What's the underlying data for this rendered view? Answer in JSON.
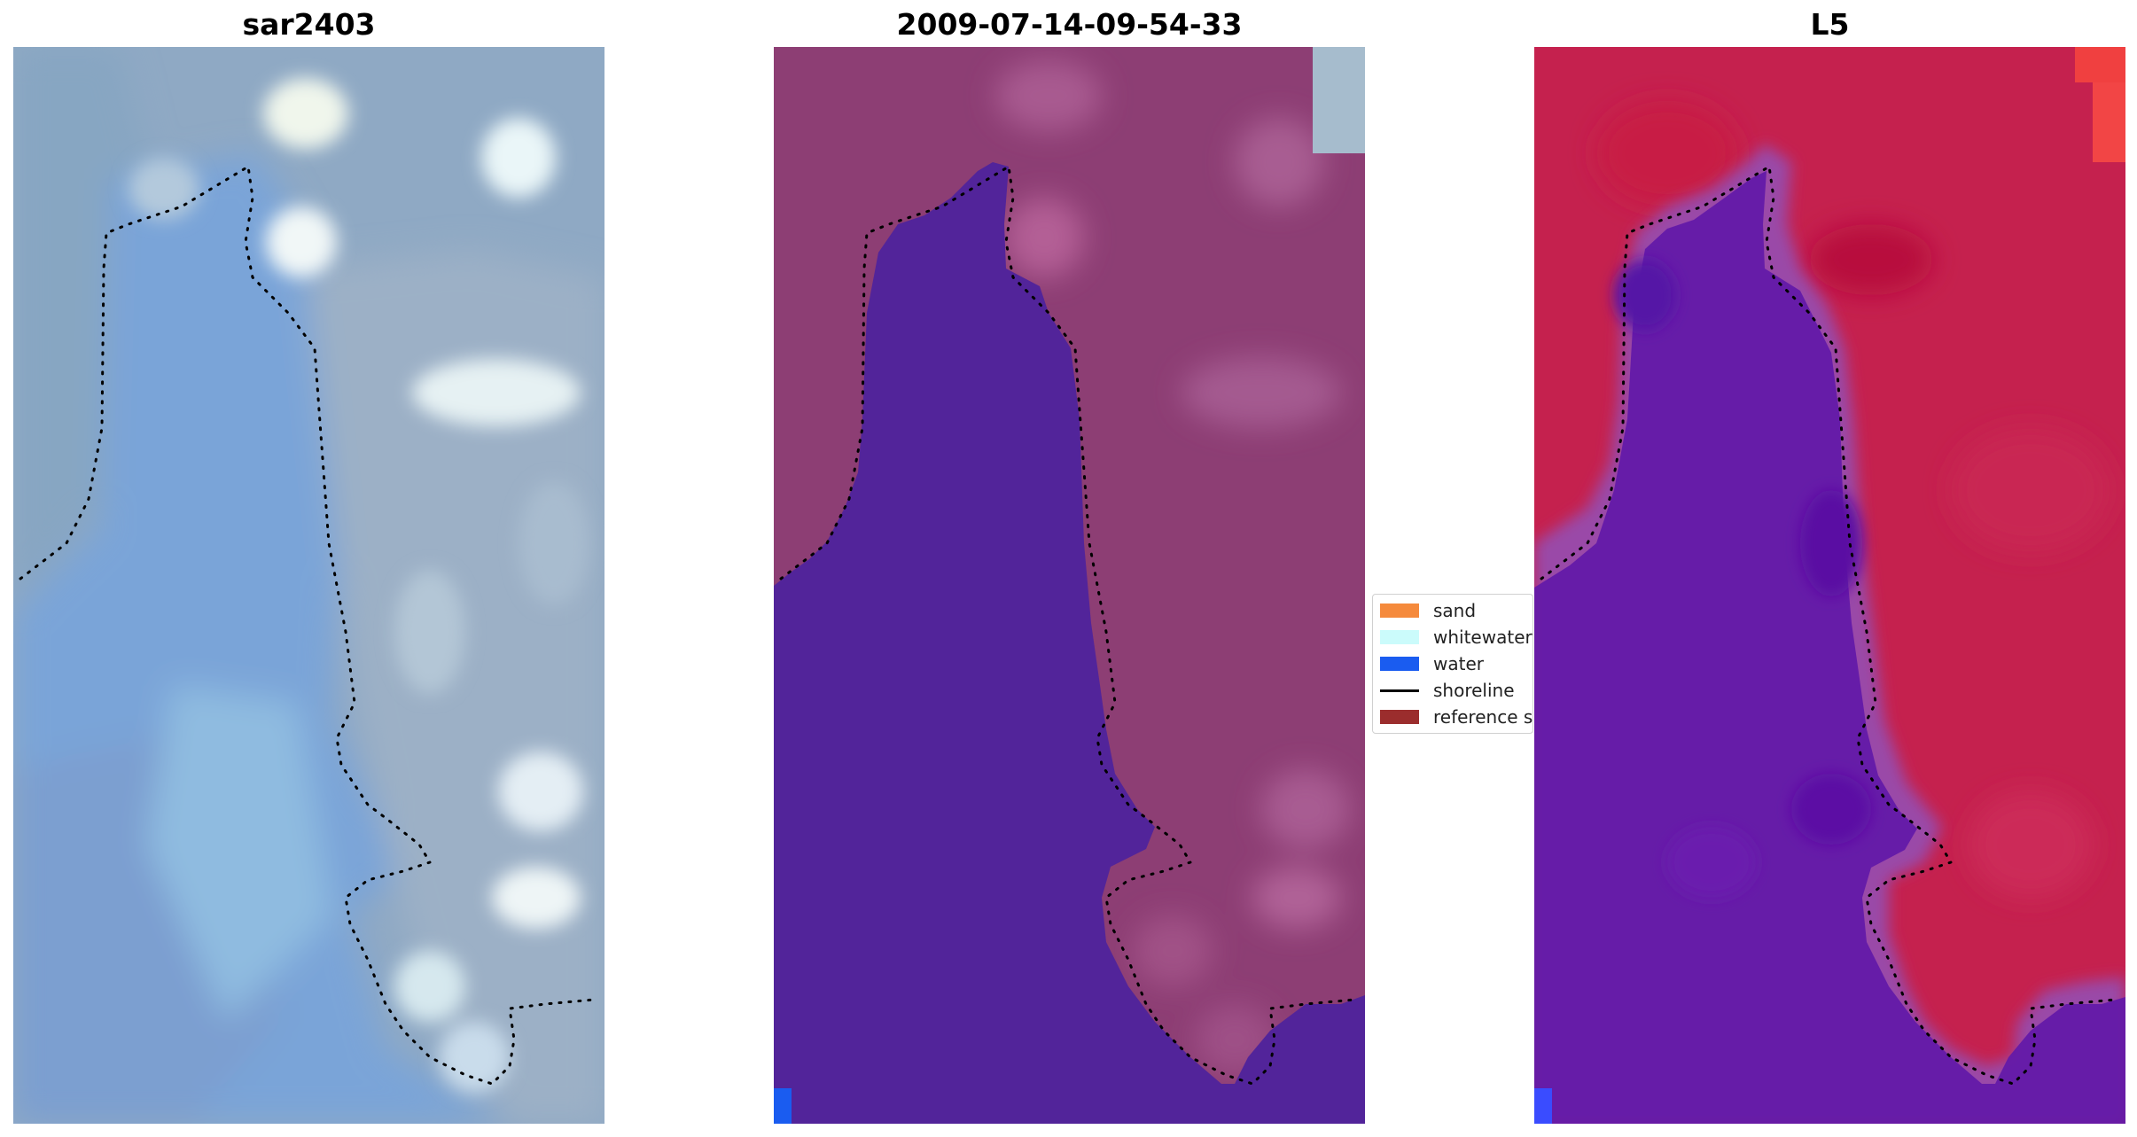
{
  "panels": [
    {
      "title": "sar2403",
      "kind": "rgb-image"
    },
    {
      "title": "2009-07-14-09-54-33",
      "kind": "classification-overlay"
    },
    {
      "title": "L5",
      "kind": "index-image"
    }
  ],
  "legend": {
    "items": [
      {
        "label": "sand",
        "color": "#f58a3c",
        "type": "patch"
      },
      {
        "label": "whitewater",
        "color": "#cbfbfb",
        "type": "patch"
      },
      {
        "label": "water",
        "color": "#1a5cf0",
        "type": "patch"
      },
      {
        "label": "shoreline",
        "color": "#000000",
        "type": "line"
      },
      {
        "label": "reference shoreline",
        "color": "#9b2d2d",
        "type": "patch"
      }
    ]
  },
  "colors": {
    "rgb_water": "#7aa6d6",
    "rgb_land": "#8fa9c4",
    "rgb_cloud": "#e8f3f6",
    "class_land": "#8d3e74",
    "class_water": "#52249a",
    "class_water_pixel": "#1a5cf0",
    "index_land": "#c5214e",
    "index_water": "#6219a8",
    "index_edge": "#9a4aa8"
  }
}
